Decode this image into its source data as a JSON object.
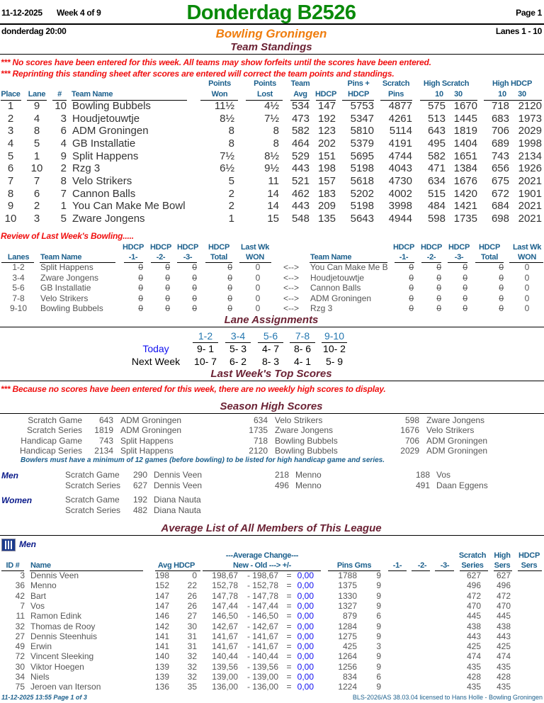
{
  "header": {
    "date": "11-12-2025",
    "week": "Week 4 of 9",
    "title": "Donderdag B2526",
    "page": "Page 1",
    "day_time": "donderdag   20:00",
    "center": "Bowling Groningen",
    "lanes": "Lanes 1 - 10",
    "section": "Team Standings"
  },
  "notices": [
    "*** No scores have been entered for this week. All teams may show forfeits until the scores have been entered.",
    "*** Reprinting this standing sheet after scores are entered will correct the team points and standings."
  ],
  "standings": {
    "headers": {
      "place": "Place",
      "lane": "Lane",
      "num": "#",
      "team": "Team Name",
      "won1": "Points",
      "won2": "Won",
      "lost1": "Points",
      "lost2": "Lost",
      "avg1": "Team",
      "avg2": "Avg",
      "hdcp": "HDCP",
      "pins1": "Pins +",
      "pins2": "HDCP",
      "scr1": "Scratch",
      "scr2": "Pins",
      "hs": "High Scratch",
      "hs10": "10",
      "hs30": "30",
      "hh": "High HDCP",
      "hh10": "10",
      "hh30": "30"
    },
    "rows": [
      [
        "1",
        "9",
        "10",
        "Bowling Bubbels",
        "11½",
        "4½",
        "534",
        "147",
        "5753",
        "4877",
        "575",
        "1670",
        "718",
        "2120"
      ],
      [
        "2",
        "4",
        "3",
        "Houdjetouwtje",
        "8½",
        "7½",
        "473",
        "192",
        "5347",
        "4261",
        "513",
        "1445",
        "683",
        "1973"
      ],
      [
        "3",
        "8",
        "6",
        "ADM Groningen",
        "8",
        "8",
        "582",
        "123",
        "5810",
        "5114",
        "643",
        "1819",
        "706",
        "2029"
      ],
      [
        "4",
        "5",
        "4",
        "GB Installatie",
        "8",
        "8",
        "464",
        "202",
        "5379",
        "4191",
        "495",
        "1404",
        "689",
        "1998"
      ],
      [
        "5",
        "1",
        "9",
        "Split Happens",
        "7½",
        "8½",
        "529",
        "151",
        "5695",
        "4744",
        "582",
        "1651",
        "743",
        "2134"
      ],
      [
        "6",
        "10",
        "2",
        "Rzg 3",
        "6½",
        "9½",
        "443",
        "198",
        "5198",
        "4043",
        "471",
        "1384",
        "656",
        "1926"
      ],
      [
        "7",
        "7",
        "8",
        "Velo Strikers",
        "5",
        "11",
        "521",
        "157",
        "5618",
        "4730",
        "634",
        "1676",
        "675",
        "2021"
      ],
      [
        "8",
        "6",
        "7",
        "Cannon Balls",
        "2",
        "14",
        "462",
        "183",
        "5202",
        "4002",
        "515",
        "1420",
        "672",
        "1901"
      ],
      [
        "9",
        "2",
        "1",
        "You Can Make Me Bowl",
        "2",
        "14",
        "443",
        "209",
        "5198",
        "3998",
        "484",
        "1421",
        "684",
        "2021"
      ],
      [
        "10",
        "3",
        "5",
        "Zware Jongens",
        "1",
        "15",
        "548",
        "135",
        "5643",
        "4944",
        "598",
        "1735",
        "698",
        "2021"
      ]
    ]
  },
  "review": {
    "title": "Review of Last Week's Bowling.....",
    "headers": {
      "lanes": "Lanes",
      "team": "Team Name",
      "hdcp": "HDCP",
      "g1": "-1-",
      "g2": "-2-",
      "g3": "-3-",
      "total": "Total",
      "lastwk": "Last Wk",
      "won": "WON"
    },
    "vs": "<-->",
    "rows": [
      [
        "1-2",
        "Split Happens",
        "0",
        "0",
        "0",
        "0",
        "0",
        "You Can Make Me B",
        "0",
        "0",
        "0",
        "0",
        "0"
      ],
      [
        "3-4",
        "Zware Jongens",
        "0",
        "0",
        "0",
        "0",
        "0",
        "Houdjetouwtje",
        "0",
        "0",
        "0",
        "0",
        "0"
      ],
      [
        "5-6",
        "GB Installatie",
        "0",
        "0",
        "0",
        "0",
        "0",
        "Cannon Balls",
        "0",
        "0",
        "0",
        "0",
        "0"
      ],
      [
        "7-8",
        "Velo Strikers",
        "0",
        "0",
        "0",
        "0",
        "0",
        "ADM Groningen",
        "0",
        "0",
        "0",
        "0",
        "0"
      ],
      [
        "9-10",
        "Bowling Bubbels",
        "0",
        "0",
        "0",
        "0",
        "0",
        "Rzg 3",
        "0",
        "0",
        "0",
        "0",
        "0"
      ]
    ]
  },
  "lane_assignments": {
    "title": "Lane Assignments",
    "pairs": [
      "1-2",
      "3-4",
      "5-6",
      "7-8",
      "9-10"
    ],
    "today_label": "Today",
    "today": [
      "9-  1",
      "5-  3",
      "4-  7",
      "8-  6",
      "10-  2"
    ],
    "next_label": "Next Week",
    "next": [
      "10-  7",
      "6-  2",
      "8-  3",
      "4-  1",
      "5-  9"
    ]
  },
  "last_week_top": {
    "title": "Last Week's Top Scores",
    "message": "*** Because no scores have been entered for this week, there are no weekly high scores to display."
  },
  "season_high": {
    "title": "Season High Scores",
    "team_rows": [
      [
        "Scratch Game",
        "643",
        "ADM Groningen",
        "634",
        "Velo Strikers",
        "598",
        "Zware Jongens"
      ],
      [
        "Scratch Series",
        "1819",
        "ADM Groningen",
        "1735",
        "Zware Jongens",
        "1676",
        "Velo Strikers"
      ],
      [
        "Handicap Game",
        "743",
        "Split Happens",
        "718",
        "Bowling Bubbels",
        "706",
        "ADM Groningen"
      ],
      [
        "Handicap Series",
        "2134",
        "Split Happens",
        "2120",
        "Bowling Bubbels",
        "2029",
        "ADM Groningen"
      ]
    ],
    "note": "Bowlers must have a minimum of 12 games (before bowling) to be listed for high handicap game and series.",
    "men_label": "Men",
    "men_rows": [
      [
        "Scratch Game",
        "290",
        "Dennis Veen",
        "218",
        "Menno",
        "188",
        "Vos"
      ],
      [
        "Scratch Series",
        "627",
        "Dennis Veen",
        "496",
        "Menno",
        "491",
        "Daan Eggens"
      ]
    ],
    "women_label": "Women",
    "women_rows": [
      [
        "Scratch Game",
        "192",
        "Diana Nauta"
      ],
      [
        "Scratch Series",
        "482",
        "Diana Nauta"
      ]
    ]
  },
  "average_list": {
    "title": "Average List of All Members of This League",
    "group": "Men",
    "headers": {
      "id": "ID #",
      "name": "Name",
      "avg_hdcp": "Avg HDCP",
      "change1": "---Average Change---",
      "change2": "New - Old ---> +/-",
      "pins_gms": "Pins  Gms",
      "g1": "-1-",
      "g2": "-2-",
      "g3": "-3-",
      "scr1": "Scratch",
      "scr2": "Series",
      "hi1": "High",
      "hi2": "Sers",
      "hd1": "HDCP",
      "hd2": "Sers"
    },
    "rows": [
      [
        "3",
        "Dennis Veen",
        "198",
        "0",
        "198,67",
        "- 198,67",
        "=",
        "0,00",
        "1788",
        "9",
        "627",
        "627"
      ],
      [
        "36",
        "Menno",
        "152",
        "22",
        "152,78",
        "- 152,78",
        "=",
        "0,00",
        "1375",
        "9",
        "496",
        "496"
      ],
      [
        "42",
        "Bart",
        "147",
        "26",
        "147,78",
        "- 147,78",
        "=",
        "0,00",
        "1330",
        "9",
        "472",
        "472"
      ],
      [
        "7",
        "Vos",
        "147",
        "26",
        "147,44",
        "- 147,44",
        "=",
        "0,00",
        "1327",
        "9",
        "470",
        "470"
      ],
      [
        "11",
        "Ramon Edink",
        "146",
        "27",
        "146,50",
        "- 146,50",
        "=",
        "0,00",
        "879",
        "6",
        "445",
        "445"
      ],
      [
        "32",
        "Thomas de Rooy",
        "142",
        "30",
        "142,67",
        "- 142,67",
        "=",
        "0,00",
        "1284",
        "9",
        "438",
        "438"
      ],
      [
        "27",
        "Dennis Steenhuis",
        "141",
        "31",
        "141,67",
        "- 141,67",
        "=",
        "0,00",
        "1275",
        "9",
        "443",
        "443"
      ],
      [
        "49",
        "Erwin",
        "141",
        "31",
        "141,67",
        "- 141,67",
        "=",
        "0,00",
        "425",
        "3",
        "425",
        "425"
      ],
      [
        "72",
        "Vincent Sleeking",
        "140",
        "32",
        "140,44",
        "- 140,44",
        "=",
        "0,00",
        "1264",
        "9",
        "474",
        "474"
      ],
      [
        "30",
        "Viktor Hoegen",
        "139",
        "32",
        "139,56",
        "- 139,56",
        "=",
        "0,00",
        "1256",
        "9",
        "435",
        "435"
      ],
      [
        "34",
        "Niels",
        "139",
        "32",
        "139,00",
        "- 139,00",
        "=",
        "0,00",
        "834",
        "6",
        "428",
        "428"
      ],
      [
        "75",
        "Jeroen van Iterson",
        "136",
        "35",
        "136,00",
        "- 136,00",
        "=",
        "0,00",
        "1224",
        "9",
        "435",
        "435"
      ]
    ]
  },
  "footer": {
    "left": "11-12-2025  13:55  Page 1 of 3",
    "right": "BLS-2026/AS 38.03.04 licensed to Hans Holle - Bowling Groningen"
  },
  "colors": {
    "title": "#0a8a0a",
    "center": "#ef7d0e",
    "section": "#6b2234",
    "warning": "#f01010",
    "header": "#1b5f8c",
    "today": "#1010f0"
  },
  "icons": {
    "men_group": "bowling-pins-icon"
  }
}
